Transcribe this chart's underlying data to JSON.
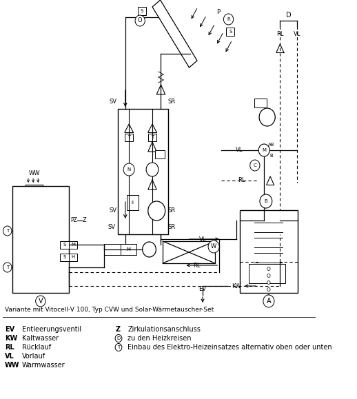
{
  "bg_color": "#ffffff",
  "line_color": "#000000",
  "subtitle": "Variante mit Vitocell-V 100, Typ CVW und Solar-Wärmetauscher-Set",
  "legend_left": [
    [
      "EV",
      "Entleerungsventil"
    ],
    [
      "KW",
      "Kaltwasser"
    ],
    [
      "RL",
      "Rücklauf"
    ],
    [
      "VL",
      "Vorlauf"
    ],
    [
      "WW",
      "Warmwasser"
    ]
  ],
  "legend_right": [
    [
      "Z",
      "Zirkulationsanschluss",
      false
    ],
    [
      "D",
      "zu den Heizkreisen",
      true
    ],
    [
      "T",
      "Einbau des Elektro-Heizeinsatzes alternativ oben oder unten",
      true
    ]
  ]
}
